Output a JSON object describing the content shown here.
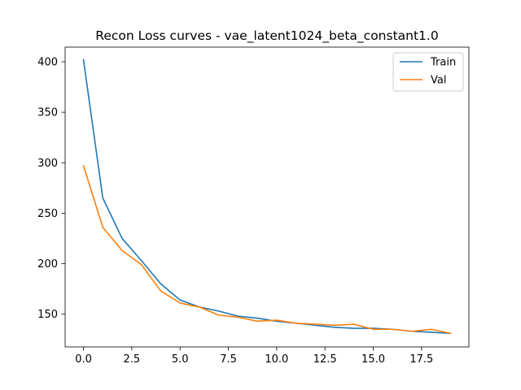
{
  "chart_data": {
    "type": "line",
    "title": "Recon Loss curves - vae_latent1024_beta_constant1.0",
    "xlabel": "",
    "ylabel": "",
    "x": [
      0,
      1,
      2,
      3,
      4,
      5,
      6,
      7,
      8,
      9,
      10,
      11,
      12,
      13,
      14,
      15,
      16,
      17,
      18,
      19
    ],
    "xlim": [
      -0.95,
      19.95
    ],
    "ylim": [
      117.5,
      414.5
    ],
    "xticks": [
      0.0,
      2.5,
      5.0,
      7.5,
      10.0,
      12.5,
      15.0,
      17.5
    ],
    "xtick_labels": [
      "0.0",
      "2.5",
      "5.0",
      "7.5",
      "10.0",
      "12.5",
      "15.0",
      "17.5"
    ],
    "yticks": [
      150,
      200,
      250,
      300,
      350,
      400
    ],
    "ytick_labels": [
      "150",
      "200",
      "250",
      "300",
      "350",
      "400"
    ],
    "grid": false,
    "legend_position": "top-right",
    "series": [
      {
        "name": "Train",
        "color": "#1f77b4",
        "values": [
          402,
          265,
          225,
          203,
          180,
          164,
          157,
          153,
          148,
          146,
          143,
          141,
          139,
          137,
          136,
          136,
          135,
          133,
          132,
          131
        ]
      },
      {
        "name": "Val",
        "color": "#ff7f0e",
        "values": [
          297,
          236,
          213,
          199,
          173,
          161,
          157,
          149,
          147,
          143,
          144,
          141,
          140,
          139,
          140,
          135,
          135,
          133,
          135,
          131
        ]
      }
    ]
  }
}
